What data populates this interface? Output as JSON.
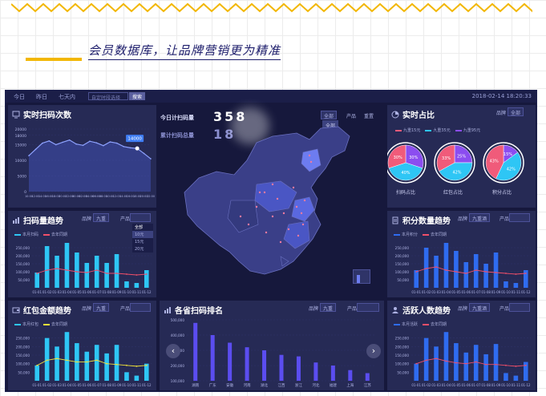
{
  "headline": "会员数据库，让品牌营销更为精准",
  "colors": {
    "bg": "#16183c",
    "panel": "#262a55",
    "bar_blue": "#2f6cf0",
    "bar_cyan": "#2ec6f5",
    "line_red": "#f04f6a",
    "line_yellow": "#f2e33a"
  },
  "topbar": {
    "today": "今日",
    "yesterday": "昨日",
    "last7": "七天内",
    "date_placeholder": "自定时段选择",
    "query_button": "搜索",
    "datetime": "2018-02-14 18:20:33"
  },
  "scan_panel": {
    "title": "实时扫码次数",
    "tooltip": "14000"
  },
  "center": {
    "today_label": "今日计扫码量",
    "today_num": "358",
    "total_label": "累计扫码总量",
    "total_num": "18",
    "filter1": "全部",
    "filter_menu": "全部",
    "filter2": "产品",
    "filter3": "重置"
  },
  "ratio_panel": {
    "title": "实时占比",
    "filter_label": "品牌",
    "filter_value": "全部",
    "legend": [
      "九重15元",
      "九重35元",
      "九重95元"
    ],
    "pies": [
      {
        "label": "扫码占比",
        "pct": [
          "30%",
          "40%",
          "30%"
        ]
      },
      {
        "label": "红包占比",
        "pct": [
          "25%",
          "42%",
          "33%"
        ]
      },
      {
        "label": "积分占比",
        "pct": [
          "15%",
          "42%",
          "43%"
        ]
      }
    ]
  },
  "trend_panel": {
    "title": "扫码量趋势",
    "filter_label": "品牌",
    "filter_value": "九重",
    "product_label": "产品",
    "menu": [
      "全部",
      "10元",
      "15元",
      "20元"
    ],
    "legend": [
      "本月扫码",
      "去年同期"
    ]
  },
  "points_panel": {
    "title": "积分数量趋势",
    "filter_label": "品牌",
    "filter_value": "九重酒",
    "product_label": "产品",
    "legend": [
      "本月积分",
      "去年同期"
    ]
  },
  "redpack_panel": {
    "title": "红包金额趋势",
    "filter_label": "品牌",
    "filter_value": "九重",
    "product_label": "产品",
    "legend": [
      "本月红包",
      "去年同期"
    ]
  },
  "rank_panel": {
    "title": "各省扫码排名",
    "filter_label": "品牌",
    "filter_value": "九重",
    "product_label": "产品"
  },
  "active_panel": {
    "title": "活跃人数趋势",
    "filter_label": "品牌",
    "filter_value": "九重酒",
    "product_label": "产品",
    "legend": [
      "本月活跃",
      "去年同期"
    ]
  },
  "chart_data": [
    {
      "type": "line",
      "panel": "scan",
      "x": [
        "10:00",
        "12:00",
        "14:00",
        "16:00",
        "18:00",
        "20:00",
        "22:00",
        "00:00",
        "02:00",
        "04:00",
        "06:00",
        "08:00",
        "10:00",
        "12:00",
        "14:00",
        "16:00",
        "18:00",
        "20:00",
        "22:00"
      ],
      "values": [
        11500,
        13500,
        15500,
        16200,
        15000,
        15800,
        16500,
        15200,
        14800,
        16100,
        15600,
        14700,
        15900,
        15500,
        14400,
        14000,
        13800,
        12200,
        10500
      ],
      "ylim": [
        0,
        20000
      ],
      "yticks": [
        "0",
        "5000",
        "10000",
        "15000",
        "18000",
        "20000"
      ],
      "xticks": [
        "10:00",
        "12:00",
        "14:00",
        "16:00",
        "18:00",
        "20:00",
        "22:00",
        "00:00",
        "02:00",
        "04:00",
        "06:00",
        "08:00",
        "10:00",
        "12:00",
        "14:00",
        "16:00",
        "18:00",
        "20:00",
        "22:00"
      ]
    },
    {
      "type": "bar",
      "panel": "trend",
      "categories": [
        "01-01",
        "01-02",
        "01-03",
        "01-04",
        "01-05",
        "01-06",
        "01-07",
        "01-08",
        "01-09",
        "01-10",
        "01-11",
        "01-12"
      ],
      "series": [
        {
          "values": [
            95000,
            260000,
            200000,
            280000,
            220000,
            155000,
            200000,
            155000,
            210000,
            40000,
            30000,
            110000
          ]
        },
        {
          "values": [
            90000,
            110000,
            120000,
            110000,
            100000,
            95000,
            110000,
            90000,
            90000,
            85000,
            80000,
            85000
          ]
        }
      ],
      "ylim": [
        0,
        300000
      ],
      "yticks": [
        "50,000",
        "100,000",
        "150,000",
        "200,000",
        "250,000"
      ]
    },
    {
      "type": "bar",
      "panel": "points",
      "categories": [
        "01-01",
        "01-02",
        "01-03",
        "01-04",
        "01-05",
        "01-06",
        "01-07",
        "01-08",
        "01-09",
        "01-10",
        "01-11",
        "01-12"
      ],
      "series": [
        {
          "values": [
            110000,
            250000,
            200000,
            280000,
            230000,
            160000,
            210000,
            150000,
            220000,
            40000,
            30000,
            110000
          ]
        },
        {
          "values": [
            100000,
            120000,
            130000,
            110000,
            100000,
            90000,
            110000,
            100000,
            95000,
            90000,
            85000,
            90000
          ]
        }
      ],
      "ylim": [
        0,
        300000
      ],
      "yticks": [
        "50,000",
        "100,000",
        "150,000",
        "200,000",
        "250,000"
      ]
    },
    {
      "type": "bar",
      "panel": "redpack",
      "categories": [
        "01-01",
        "01-02",
        "01-03",
        "01-04",
        "01-05",
        "01-06",
        "01-07",
        "01-08",
        "01-09",
        "01-10",
        "01-11",
        "01-12"
      ],
      "series": [
        {
          "values": [
            90000,
            250000,
            200000,
            285000,
            220000,
            170000,
            210000,
            160000,
            210000,
            50000,
            30000,
            100000
          ]
        },
        {
          "values": [
            90000,
            120000,
            130000,
            120000,
            110000,
            110000,
            120000,
            100000,
            95000,
            90000,
            85000,
            90000
          ]
        }
      ],
      "ylim": [
        0,
        300000
      ],
      "yticks": [
        "50,000",
        "100,000",
        "150,000",
        "200,000",
        "250,000"
      ]
    },
    {
      "type": "bar",
      "panel": "rank",
      "categories": [
        "湖南",
        "广东",
        "安徽",
        "河南",
        "湖北",
        "江西",
        "浙江",
        "河北",
        "福建",
        "上海",
        "江苏"
      ],
      "values": [
        480000,
        400000,
        350000,
        320000,
        300000,
        270000,
        260000,
        220000,
        200000,
        170000,
        150000
      ],
      "ylim": [
        100000,
        500000
      ],
      "yticks": [
        "100,000",
        "200,000",
        "300,000",
        "400,000",
        "500,000"
      ]
    },
    {
      "type": "bar",
      "panel": "active",
      "categories": [
        "01-01",
        "01-02",
        "01-03",
        "01-04",
        "01-05",
        "01-06",
        "01-07",
        "01-08",
        "01-09",
        "01-10",
        "01-11",
        "01-12"
      ],
      "series": [
        {
          "values": [
            100000,
            250000,
            200000,
            285000,
            220000,
            165000,
            210000,
            155000,
            215000,
            45000,
            30000,
            110000
          ]
        },
        {
          "values": [
            100000,
            120000,
            130000,
            115000,
            105000,
            100000,
            110000,
            95000,
            95000,
            90000,
            85000,
            90000
          ]
        }
      ],
      "ylim": [
        0,
        300000
      ],
      "yticks": [
        "50,000",
        "100,000",
        "150,000",
        "200,000",
        "250,000"
      ]
    }
  ]
}
